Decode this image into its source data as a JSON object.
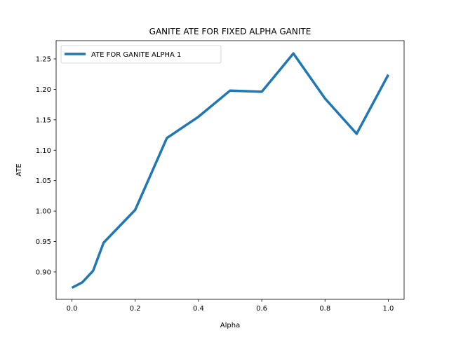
{
  "chart_data": {
    "type": "line",
    "title": "GANITE ATE FOR FIXED ALPHA GANITE",
    "xlabel": "Alpha",
    "ylabel": "ATE",
    "xlim": [
      -0.05,
      1.05
    ],
    "ylim": [
      0.855,
      1.28
    ],
    "x_ticks": [
      0.0,
      0.2,
      0.4,
      0.6,
      0.8,
      1.0
    ],
    "x_tick_labels": [
      "0.0",
      "0.2",
      "0.4",
      "0.6",
      "0.8",
      "1.0"
    ],
    "y_ticks": [
      0.9,
      0.95,
      1.0,
      1.05,
      1.1,
      1.15,
      1.2,
      1.25
    ],
    "y_tick_labels": [
      "0.90",
      "0.95",
      "1.00",
      "1.05",
      "1.10",
      "1.15",
      "1.20",
      "1.25"
    ],
    "grid": false,
    "legend_position": "top-left",
    "series": [
      {
        "name": "ATE FOR GANITE ALPHA 1",
        "color": "#1f77b4",
        "x": [
          0.0,
          0.033,
          0.067,
          0.1,
          0.2,
          0.3,
          0.4,
          0.5,
          0.6,
          0.7,
          0.8,
          0.9,
          1.0
        ],
        "y": [
          0.874,
          0.883,
          0.902,
          0.948,
          1.002,
          1.12,
          1.155,
          1.198,
          1.196,
          1.259,
          1.185,
          1.127,
          1.224
        ]
      }
    ]
  }
}
